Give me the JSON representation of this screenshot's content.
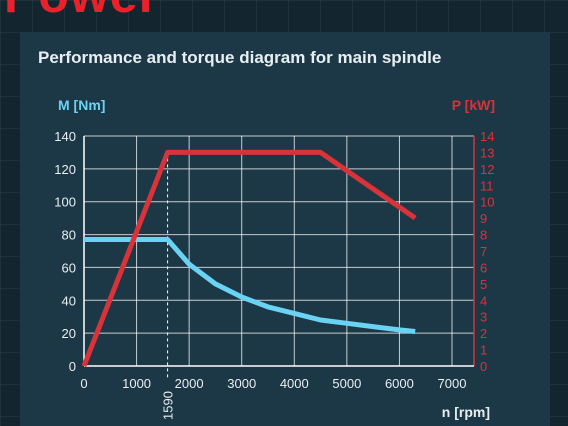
{
  "brand_text": "Power",
  "title": "Performance and torque diagram for main spindle",
  "colors": {
    "torque": "#6ad3f3",
    "power": "#d9333a",
    "grid": "#ffffff",
    "title": "#e8eef2",
    "background": "#1c3846"
  },
  "chart_data": {
    "type": "line",
    "title": "Performance and torque diagram for main spindle",
    "xlabel": "n [rpm]",
    "ylabel_left": "M [Nm]",
    "ylabel_right": "P [kW]",
    "xlim": [
      0,
      7000
    ],
    "ylim_left": [
      0,
      140
    ],
    "ylim_right": [
      0,
      14
    ],
    "x_ticks": [
      0,
      1000,
      2000,
      3000,
      4000,
      5000,
      6000,
      7000
    ],
    "y_left_ticks": [
      0,
      20,
      40,
      60,
      80,
      100,
      120,
      140
    ],
    "y_right_ticks": [
      0,
      1,
      2,
      3,
      4,
      5,
      6,
      7,
      8,
      9,
      10,
      11,
      12,
      13,
      14
    ],
    "grid": true,
    "annotation": {
      "x": 1590,
      "label": "1590"
    },
    "series": [
      {
        "axis": "left",
        "points": [
          [
            0,
            77
          ],
          [
            1590,
            77
          ],
          [
            2000,
            62
          ],
          [
            2500,
            50
          ],
          [
            3000,
            42
          ],
          [
            3500,
            36
          ],
          [
            4000,
            32
          ],
          [
            4500,
            28
          ],
          [
            5000,
            26
          ],
          [
            5500,
            24
          ],
          [
            6000,
            22
          ],
          [
            6300,
            21
          ]
        ]
      },
      {
        "axis": "right",
        "points": [
          [
            0,
            0
          ],
          [
            1590,
            13
          ],
          [
            4500,
            13
          ],
          [
            6300,
            9
          ]
        ]
      }
    ]
  }
}
